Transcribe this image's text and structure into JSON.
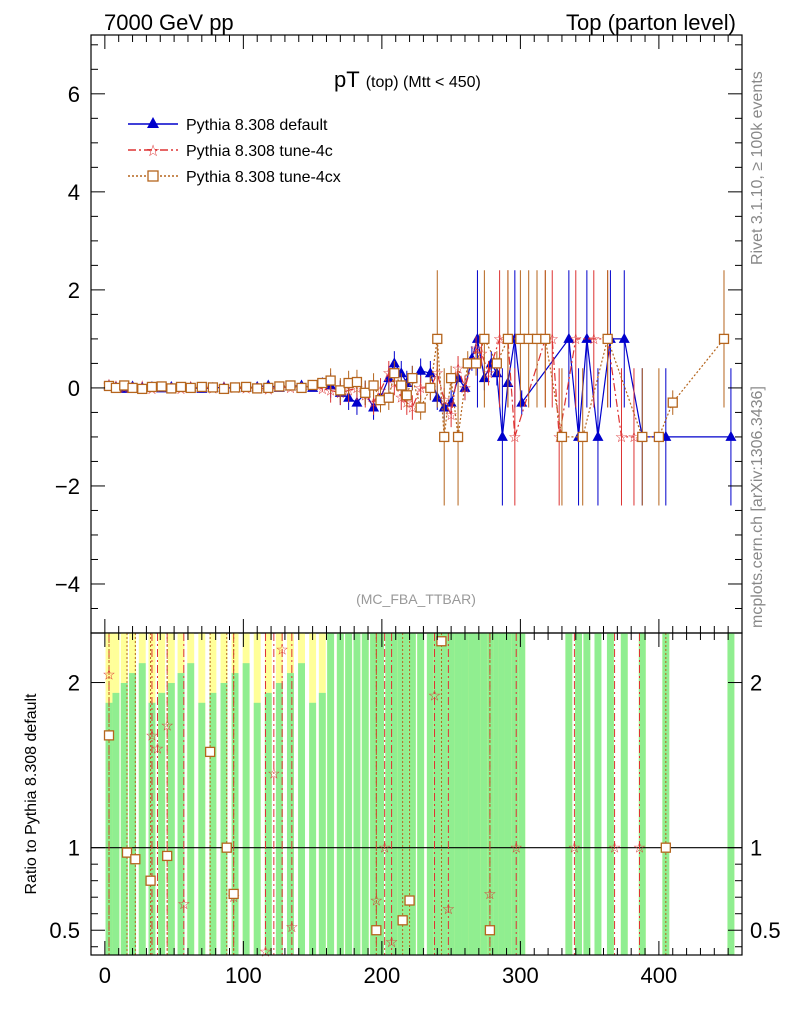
{
  "header": {
    "left": "7000 GeV pp",
    "right": "Top (parton level)"
  },
  "side_labels": {
    "rivet": "Rivet 3.1.10, ≥ 100k events",
    "mcplots": "mcplots.cern.ch [arXiv:1306.3436]"
  },
  "colors": {
    "default": "#0000cc",
    "tune4c": "#dd3333",
    "tune4cx": "#b5651d",
    "band_green": "#90ee90",
    "band_yellow": "#ffff99"
  },
  "chart_data": [
    {
      "type": "line",
      "title_main": "pT",
      "title_sub": "(top) (Mtt < 450)",
      "analysis": "(MC_FBA_TTBAR)",
      "xlim": [
        -10,
        460
      ],
      "ylim": [
        -5,
        7.2
      ],
      "yticks": [
        -4,
        -2,
        0,
        2,
        4,
        6
      ],
      "legend_position": "top-left",
      "series": [
        {
          "name": "Pythia 8.308 default",
          "marker": "triangle",
          "linestyle": "solid",
          "points": [
            [
              3,
              0.05
            ],
            [
              8,
              0.02
            ],
            [
              14,
              -0.02
            ],
            [
              20,
              0.03
            ],
            [
              27,
              0.0
            ],
            [
              34,
              0.02
            ],
            [
              41,
              -0.01
            ],
            [
              48,
              0.02
            ],
            [
              55,
              0.0
            ],
            [
              62,
              0.01
            ],
            [
              70,
              -0.02
            ],
            [
              78,
              0.0
            ],
            [
              86,
              0.01
            ],
            [
              94,
              -0.01
            ],
            [
              102,
              0.0
            ],
            [
              110,
              0.02
            ],
            [
              118,
              0.05
            ],
            [
              126,
              0.0
            ],
            [
              134,
              0.03
            ],
            [
              142,
              0.05
            ],
            [
              150,
              0.0
            ],
            [
              157,
              0.1
            ],
            [
              163,
              0.05
            ],
            [
              170,
              -0.1
            ],
            [
              176,
              -0.2
            ],
            [
              182,
              -0.3
            ],
            [
              188,
              -0.1
            ],
            [
              194,
              -0.4
            ],
            [
              199,
              -0.2
            ],
            [
              205,
              0.2
            ],
            [
              209,
              0.5
            ],
            [
              214,
              0.3
            ],
            [
              218,
              0.1
            ],
            [
              222,
              0.2
            ],
            [
              228,
              0.35
            ],
            [
              235,
              0.3
            ],
            [
              240,
              -0.2
            ],
            [
              245,
              -0.4
            ],
            [
              250,
              -0.3
            ],
            [
              255,
              0.2
            ],
            [
              260,
              0.0
            ],
            [
              265,
              0.6
            ],
            [
              269,
              1.0
            ],
            [
              274,
              0.2
            ],
            [
              279,
              0.5
            ],
            [
              283,
              0.3
            ],
            [
              287,
              -1.0
            ],
            [
              291,
              0.1
            ],
            [
              296,
              1.0
            ],
            [
              301,
              -0.3
            ],
            [
              335,
              1.0
            ],
            [
              342,
              -1.0
            ],
            [
              348,
              1.0
            ],
            [
              356,
              -1.0
            ],
            [
              365,
              1.0
            ],
            [
              375,
              1.0
            ],
            [
              388,
              -1.0
            ],
            [
              405,
              -1.0
            ],
            [
              452,
              -1.0
            ]
          ]
        },
        {
          "name": "Pythia 8.308 tune-4c",
          "marker": "star",
          "linestyle": "dashdot",
          "points": [
            [
              3,
              0.07
            ],
            [
              8,
              0.04
            ],
            [
              14,
              0.0
            ],
            [
              20,
              0.01
            ],
            [
              27,
              0.04
            ],
            [
              34,
              -0.02
            ],
            [
              41,
              0.02
            ],
            [
              48,
              0.0
            ],
            [
              55,
              -0.02
            ],
            [
              62,
              0.03
            ],
            [
              70,
              0.01
            ],
            [
              78,
              -0.01
            ],
            [
              86,
              0.02
            ],
            [
              94,
              0.0
            ],
            [
              102,
              -0.01
            ],
            [
              110,
              0.0
            ],
            [
              118,
              -0.03
            ],
            [
              126,
              0.02
            ],
            [
              134,
              0.0
            ],
            [
              142,
              0.01
            ],
            [
              150,
              0.05
            ],
            [
              157,
              -0.02
            ],
            [
              163,
              -0.05
            ],
            [
              170,
              -0.1
            ],
            [
              176,
              -0.05
            ],
            [
              182,
              0.0
            ],
            [
              188,
              -0.15
            ],
            [
              194,
              -0.3
            ],
            [
              199,
              -0.05
            ],
            [
              205,
              0.3
            ],
            [
              209,
              0.1
            ],
            [
              214,
              -0.2
            ],
            [
              218,
              -0.3
            ],
            [
              222,
              -0.4
            ],
            [
              228,
              0.0
            ],
            [
              235,
              0.0
            ],
            [
              240,
              0.3
            ],
            [
              245,
              -0.25
            ],
            [
              250,
              -0.55
            ],
            [
              255,
              0.4
            ],
            [
              260,
              0.0
            ],
            [
              268,
              0.8
            ],
            [
              272,
              0.7
            ],
            [
              277,
              0.3
            ],
            [
              285,
              1.0
            ],
            [
              291,
              1.0
            ],
            [
              296,
              -1.0
            ],
            [
              318,
              1.0
            ],
            [
              323,
              1.0
            ],
            [
              328,
              -1.0
            ],
            [
              340,
              1.0
            ],
            [
              353,
              1.0
            ],
            [
              363,
              1.0
            ],
            [
              373,
              -1.0
            ],
            [
              382,
              -1.0
            ]
          ]
        },
        {
          "name": "Pythia 8.308 tune-4cx",
          "marker": "square",
          "linestyle": "dotted",
          "points": [
            [
              3,
              0.04
            ],
            [
              8,
              0.0
            ],
            [
              14,
              0.05
            ],
            [
              20,
              0.0
            ],
            [
              27,
              -0.02
            ],
            [
              34,
              0.02
            ],
            [
              41,
              0.03
            ],
            [
              48,
              -0.01
            ],
            [
              55,
              0.02
            ],
            [
              62,
              0.0
            ],
            [
              70,
              0.02
            ],
            [
              78,
              0.01
            ],
            [
              86,
              -0.02
            ],
            [
              94,
              0.01
            ],
            [
              102,
              0.02
            ],
            [
              110,
              -0.01
            ],
            [
              118,
              0.0
            ],
            [
              126,
              0.03
            ],
            [
              134,
              0.05
            ],
            [
              142,
              0.0
            ],
            [
              150,
              0.06
            ],
            [
              157,
              0.1
            ],
            [
              163,
              0.15
            ],
            [
              170,
              -0.05
            ],
            [
              176,
              0.1
            ],
            [
              182,
              0.12
            ],
            [
              188,
              -0.1
            ],
            [
              194,
              0.05
            ],
            [
              199,
              -0.25
            ],
            [
              205,
              -0.2
            ],
            [
              209,
              0.3
            ],
            [
              214,
              0.05
            ],
            [
              218,
              -0.15
            ],
            [
              222,
              0.2
            ],
            [
              228,
              -0.4
            ],
            [
              235,
              0.0
            ],
            [
              240,
              1.0
            ],
            [
              245,
              -1.0
            ],
            [
              250,
              0.2
            ],
            [
              255,
              -1.0
            ],
            [
              262,
              0.5
            ],
            [
              268,
              0.5
            ],
            [
              274,
              1.0
            ],
            [
              283,
              0.5
            ],
            [
              291,
              1.0
            ],
            [
              300,
              1.0
            ],
            [
              306,
              1.0
            ],
            [
              312,
              1.0
            ],
            [
              318,
              1.0
            ],
            [
              330,
              -1.0
            ],
            [
              345,
              -1.0
            ],
            [
              363,
              1.0
            ],
            [
              388,
              -1.0
            ],
            [
              400,
              -1.0
            ],
            [
              410,
              -0.3
            ],
            [
              447,
              1.0
            ]
          ]
        }
      ]
    },
    {
      "type": "line",
      "ylabel": "Ratio to Pythia 8.308 default",
      "xlim": [
        -10,
        460
      ],
      "ylim": [
        0.35,
        2.3
      ],
      "yticks": [
        0.5,
        1,
        2
      ],
      "xticks": [
        0,
        100,
        200,
        300,
        400
      ],
      "reference": 1,
      "series": [
        {
          "name": "Pythia 8.308 tune-4c",
          "points": [
            [
              3,
              2.05
            ],
            [
              34,
              1.68
            ],
            [
              38,
              1.6
            ],
            [
              45,
              1.74
            ],
            [
              57,
              0.66
            ],
            [
              93,
              0.7
            ],
            [
              116,
              0.37
            ],
            [
              122,
              1.45
            ],
            [
              128,
              2.2
            ],
            [
              135,
              0.52
            ],
            [
              196,
              0.68
            ],
            [
              202,
              1.0
            ],
            [
              207,
              0.43
            ],
            [
              238,
              1.92
            ],
            [
              248,
              0.63
            ],
            [
              278,
              0.72
            ],
            [
              297,
              1.0
            ],
            [
              339,
              1.0
            ],
            [
              368,
              1.0
            ],
            [
              386,
              1.0
            ]
          ]
        },
        {
          "name": "Pythia 8.308 tune-4cx",
          "points": [
            [
              3,
              1.68
            ],
            [
              16,
              0.97
            ],
            [
              22,
              0.93
            ],
            [
              33,
              0.8
            ],
            [
              45,
              0.95
            ],
            [
              76,
              1.58
            ],
            [
              88,
              1.0
            ],
            [
              93,
              0.72
            ],
            [
              196,
              0.5
            ],
            [
              215,
              0.56
            ],
            [
              220,
              0.68
            ],
            [
              243,
              2.25
            ],
            [
              278,
              0.5
            ],
            [
              405,
              1.0
            ]
          ]
        }
      ]
    }
  ]
}
